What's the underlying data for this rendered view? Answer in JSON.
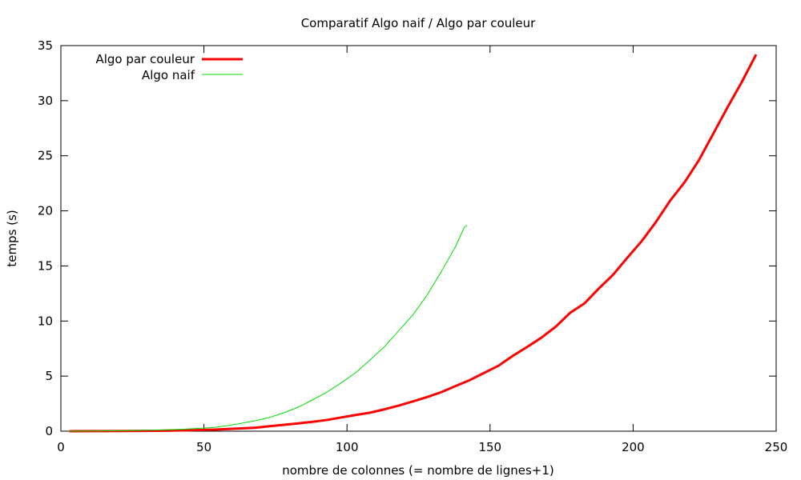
{
  "chart_data": {
    "type": "line",
    "title": "Comparatif Algo naif / Algo par couleur",
    "xlabel": "nombre de colonnes (= nombre de lignes+1)",
    "ylabel": "temps (s)",
    "xlim": [
      0,
      250
    ],
    "ylim": [
      0,
      35
    ],
    "xticks": [
      "0",
      "50",
      "100",
      "150",
      "200",
      "250"
    ],
    "yticks": [
      "0",
      "5",
      "10",
      "15",
      "20",
      "25",
      "30",
      "35"
    ],
    "grid": false,
    "legend_position": "top-left",
    "series": [
      {
        "name": "Algo par couleur",
        "color": "#ff0000",
        "x": [
          3,
          13,
          23,
          33,
          43,
          53,
          63,
          68,
          73,
          78,
          83,
          88,
          93,
          98,
          103,
          108,
          113,
          118,
          123,
          128,
          133,
          138,
          143,
          148,
          153,
          158,
          163,
          168,
          173,
          178,
          183,
          188,
          193,
          198,
          203,
          208,
          213,
          218,
          223,
          228,
          233,
          238,
          243
        ],
        "y": [
          0.0,
          0.01,
          0.02,
          0.04,
          0.07,
          0.14,
          0.25,
          0.32,
          0.45,
          0.58,
          0.71,
          0.85,
          1.02,
          1.25,
          1.47,
          1.68,
          1.98,
          2.32,
          2.7,
          3.1,
          3.55,
          4.1,
          4.65,
          5.3,
          5.95,
          6.85,
          7.65,
          8.5,
          9.5,
          10.75,
          11.6,
          12.95,
          14.2,
          15.75,
          17.25,
          19.0,
          20.95,
          22.6,
          24.6,
          27.0,
          29.4,
          31.7,
          34.2
        ]
      },
      {
        "name": "Algo naif",
        "color": "#00dd00",
        "x": [
          3,
          13,
          23,
          33,
          43,
          53,
          58,
          63,
          68,
          73,
          78,
          83,
          88,
          93,
          98,
          103,
          108,
          113,
          118,
          123,
          128,
          133,
          138,
          141,
          142
        ],
        "y": [
          0.0,
          0.02,
          0.05,
          0.1,
          0.18,
          0.33,
          0.5,
          0.72,
          0.95,
          1.25,
          1.68,
          2.18,
          2.85,
          3.55,
          4.4,
          5.3,
          6.45,
          7.65,
          9.1,
          10.55,
          12.35,
          14.5,
          16.8,
          18.5,
          18.7
        ]
      }
    ]
  }
}
